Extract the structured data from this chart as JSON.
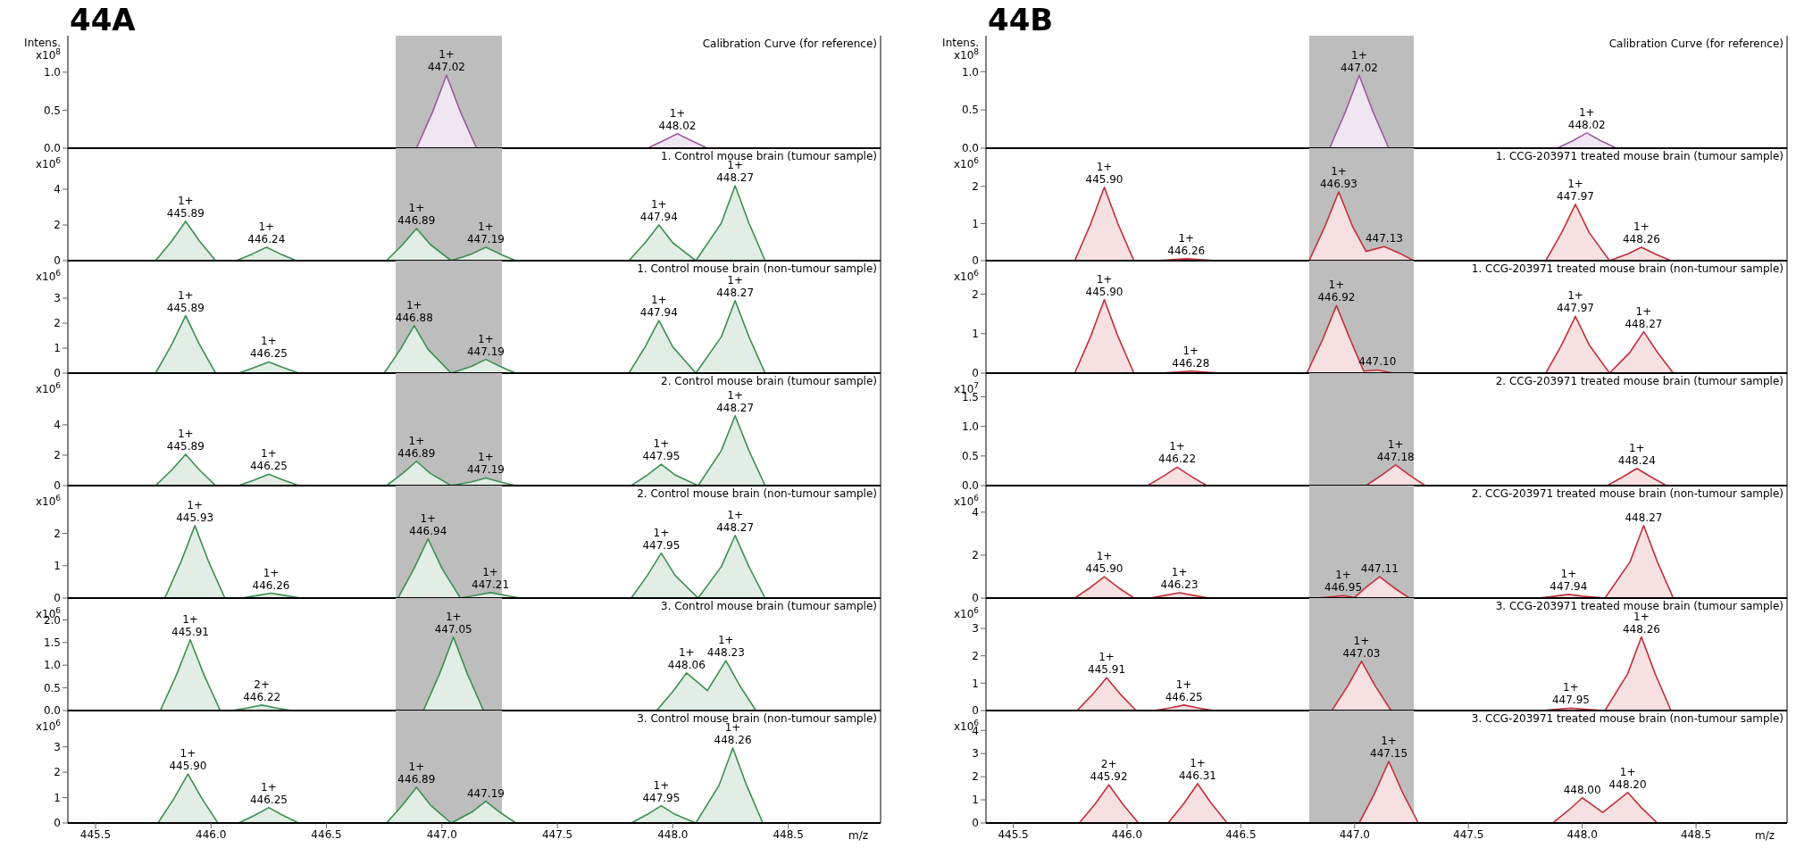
{
  "chart_data": [
    {
      "type": "area",
      "title": "Calibration Curve (for reference)",
      "ylabel": "Intens.\nx10$^{8}$",
      "annotations": [
        "44A",
        {
          "text": "1+\n447.02",
          "x": 447.02,
          "y": 0.96
        },
        {
          "text": "1+\n448.02",
          "x": 448.02,
          "y": 0.19
        }
      ],
      "xlim": [
        445.38,
        448.9
      ],
      "ylim": [
        0,
        1.48
      ],
      "yticks": [
        {
          "value": 0,
          "label": "0.0"
        },
        0.5,
        {
          "value": 1,
          "label": "1.0"
        }
      ],
      "tick_labels": "y",
      "bands": [
        {
          "axis": "x",
          "from": 446.8,
          "to": 447.26,
          "color": "#bdbdbd"
        }
      ],
      "series": [
        {
          "color": "#9c5aa0",
          "x": [
            446.89,
            446.96,
            447.02,
            447.08,
            447.15,
            447.89,
            447.96,
            448.02,
            448.08,
            448.15
          ],
          "values": [
            0,
            0.48,
            0.96,
            0.48,
            0,
            0,
            0.1,
            0.19,
            0.1,
            0
          ]
        }
      ]
    },
    {
      "type": "area",
      "title": "1. Control mouse brain (tumour sample)",
      "ylabel": "x10$^{6}$",
      "annotations": [
        {
          "text": "1+\n445.89",
          "x": 445.89,
          "y": 2.2
        },
        {
          "text": "1+\n446.24",
          "x": 446.24,
          "y": 0.75
        },
        {
          "text": "1+\n446.89",
          "x": 446.89,
          "y": 1.8
        },
        {
          "text": "1+\n447.19",
          "x": 447.19,
          "y": 0.75
        },
        {
          "text": "1+\n447.94",
          "x": 447.94,
          "y": 2.0
        },
        {
          "text": "1+\n448.27",
          "x": 448.27,
          "y": 4.2
        }
      ],
      "xlim": [
        445.38,
        448.9
      ],
      "ylim": [
        0,
        6.3
      ],
      "yticks": [
        0,
        2,
        4
      ],
      "tick_labels": "y",
      "bands": [
        {
          "axis": "x",
          "from": 446.8,
          "to": 447.26,
          "color": "#bdbdbd"
        }
      ],
      "series": [
        {
          "color": "#3c8f4f",
          "x": [
            445.76,
            445.83,
            445.89,
            445.95,
            446.02,
            446.11,
            446.18,
            446.24,
            446.3,
            446.37,
            446.76,
            446.83,
            446.89,
            446.95,
            447.04,
            447.13,
            447.19,
            447.25,
            447.32,
            447.81,
            447.88,
            447.94,
            448.0,
            448.1,
            448.21,
            448.27,
            448.33,
            448.4
          ],
          "values": [
            0,
            1.1,
            2.2,
            1.1,
            0,
            0,
            0.38,
            0.75,
            0.38,
            0,
            0,
            0.9,
            1.8,
            0.9,
            0,
            0.38,
            0.75,
            0.38,
            0,
            0,
            1,
            2,
            1,
            0,
            2.1,
            4.2,
            2.1,
            0
          ]
        }
      ]
    },
    {
      "type": "area",
      "title": "1. Control mouse brain (non-tumour sample)",
      "ylabel": "x10$^{6}$",
      "annotations": [
        {
          "text": "1+\n445.89",
          "x": 445.89,
          "y": 2.3
        },
        {
          "text": "1+\n446.25",
          "x": 446.25,
          "y": 0.45
        },
        {
          "text": "1+\n446.88",
          "x": 446.88,
          "y": 1.9
        },
        {
          "text": "1+\n447.19",
          "x": 447.19,
          "y": 0.55
        },
        {
          "text": "1+\n447.94",
          "x": 447.94,
          "y": 2.1
        },
        {
          "text": "1+\n448.27",
          "x": 448.27,
          "y": 2.9
        }
      ],
      "xlim": [
        445.38,
        448.9
      ],
      "ylim": [
        0,
        4.5
      ],
      "yticks": [
        0,
        1,
        2,
        3
      ],
      "tick_labels": "y",
      "bands": [
        {
          "axis": "x",
          "from": 446.8,
          "to": 447.26,
          "color": "#bdbdbd"
        }
      ],
      "series": [
        {
          "color": "#3c8f4f",
          "x": [
            445.76,
            445.83,
            445.89,
            445.95,
            446.02,
            446.12,
            446.19,
            446.25,
            446.31,
            446.38,
            446.75,
            446.82,
            446.88,
            446.94,
            447.04,
            447.13,
            447.19,
            447.25,
            447.32,
            447.81,
            447.88,
            447.94,
            448.0,
            448.1,
            448.21,
            448.27,
            448.33,
            448.4
          ],
          "values": [
            0,
            1.15,
            2.3,
            1.15,
            0,
            0,
            0.23,
            0.45,
            0.23,
            0,
            0,
            0.95,
            1.9,
            0.95,
            0,
            0.28,
            0.55,
            0.28,
            0,
            0,
            1.05,
            2.1,
            1.05,
            0,
            1.45,
            2.9,
            1.45,
            0
          ]
        }
      ]
    },
    {
      "type": "area",
      "title": "2. Control mouse brain (tumour sample)",
      "ylabel": "x10$^{6}$",
      "annotations": [
        {
          "text": "1+\n445.89",
          "x": 445.89,
          "y": 2.06
        },
        {
          "text": "1+\n446.25",
          "x": 446.25,
          "y": 0.75
        },
        {
          "text": "1+\n446.89",
          "x": 446.89,
          "y": 1.6
        },
        {
          "text": "1+\n447.19",
          "x": 447.19,
          "y": 0.5
        },
        {
          "text": "1+\n447.95",
          "x": 447.95,
          "y": 1.4
        },
        {
          "text": "1+\n448.27",
          "x": 448.27,
          "y": 4.6
        }
      ],
      "xlim": [
        445.38,
        448.9
      ],
      "ylim": [
        0,
        7.4
      ],
      "yticks": [
        0,
        2,
        4
      ],
      "tick_labels": "y",
      "bands": [
        {
          "axis": "x",
          "from": 446.8,
          "to": 447.26,
          "color": "#bdbdbd"
        }
      ],
      "series": [
        {
          "color": "#3c8f4f",
          "x": [
            445.76,
            445.83,
            445.89,
            445.95,
            446.02,
            446.12,
            446.19,
            446.25,
            446.31,
            446.38,
            446.76,
            446.83,
            446.89,
            446.95,
            447.04,
            447.13,
            447.19,
            447.25,
            447.32,
            447.82,
            447.89,
            447.95,
            448.01,
            448.11,
            448.21,
            448.27,
            448.33,
            448.4
          ],
          "values": [
            0,
            1.03,
            2.06,
            1.03,
            0,
            0,
            0.38,
            0.75,
            0.38,
            0,
            0,
            0.8,
            1.6,
            0.8,
            0,
            0.25,
            0.5,
            0.25,
            0,
            0,
            0.7,
            1.4,
            0.7,
            0,
            2.3,
            4.6,
            2.3,
            0
          ]
        }
      ]
    },
    {
      "type": "area",
      "title": "2. Control mouse brain (non-tumour sample)",
      "ylabel": "x10$^{6}$",
      "annotations": [
        {
          "text": "1+\n445.93",
          "x": 445.93,
          "y": 2.24
        },
        {
          "text": "1+\n446.26",
          "x": 446.26,
          "y": 0.15
        },
        {
          "text": "1+\n446.94",
          "x": 446.94,
          "y": 1.83
        },
        {
          "text": "1+\n447.21",
          "x": 447.21,
          "y": 0.17
        },
        {
          "text": "1+\n447.95",
          "x": 447.95,
          "y": 1.39
        },
        {
          "text": "1+\n448.27",
          "x": 448.27,
          "y": 1.94
        }
      ],
      "xlim": [
        445.38,
        448.9
      ],
      "ylim": [
        0,
        3.48
      ],
      "yticks": [
        0,
        1,
        2
      ],
      "tick_labels": "y",
      "bands": [
        {
          "axis": "x",
          "from": 446.8,
          "to": 447.26,
          "color": "#bdbdbd"
        }
      ],
      "series": [
        {
          "color": "#3c8f4f",
          "x": [
            445.8,
            445.87,
            445.93,
            445.99,
            446.06,
            446.13,
            446.2,
            446.26,
            446.32,
            446.39,
            446.81,
            446.88,
            446.94,
            447.0,
            447.08,
            447.15,
            447.21,
            447.27,
            447.34,
            447.82,
            447.89,
            447.95,
            448.01,
            448.11,
            448.21,
            448.27,
            448.33,
            448.4
          ],
          "values": [
            0,
            1.12,
            2.24,
            1.12,
            0,
            0,
            0.08,
            0.15,
            0.08,
            0,
            0,
            0.92,
            1.83,
            0.92,
            0,
            0.09,
            0.17,
            0.09,
            0,
            0,
            0.7,
            1.39,
            0.7,
            0,
            0.97,
            1.94,
            0.97,
            0
          ]
        }
      ]
    },
    {
      "type": "area",
      "title": "3. Control mouse brain (tumour sample)",
      "ylabel": "x10$^{6}$",
      "annotations": [
        {
          "text": "1+\n445.91",
          "x": 445.91,
          "y": 1.56
        },
        {
          "text": "2+\n446.22",
          "x": 446.22,
          "y": 0.12
        },
        {
          "text": "1+\n447.05",
          "x": 447.05,
          "y": 1.62
        },
        {
          "text": "1+\n448.06",
          "x": 448.06,
          "y": 0.83
        },
        {
          "text": "1+\n448.23",
          "x": 448.23,
          "y": 1.1
        }
      ],
      "xlim": [
        445.38,
        448.9
      ],
      "ylim": [
        0,
        2.48
      ],
      "yticks": [
        {
          "value": 0,
          "label": "0.0"
        },
        0.5,
        {
          "value": 1,
          "label": "1.0"
        },
        1.5,
        {
          "value": 2,
          "label": "2.0"
        }
      ],
      "tick_labels": "y",
      "bands": [
        {
          "axis": "x",
          "from": 446.8,
          "to": 447.26,
          "color": "#bdbdbd"
        }
      ],
      "series": [
        {
          "color": "#3c8f4f",
          "x": [
            445.78,
            445.85,
            445.91,
            445.97,
            446.04,
            446.09,
            446.16,
            446.22,
            446.28,
            446.35,
            446.92,
            446.99,
            447.05,
            447.11,
            447.18,
            447.93,
            448.0,
            448.06,
            448.15,
            448.23,
            448.29,
            448.36
          ],
          "values": [
            0,
            0.78,
            1.56,
            0.78,
            0,
            0,
            0.06,
            0.12,
            0.06,
            0,
            0,
            0.81,
            1.62,
            0.81,
            0,
            0,
            0.42,
            0.83,
            0.44,
            1.1,
            0.55,
            0
          ]
        }
      ]
    },
    {
      "type": "area",
      "title": "3. Control mouse brain (non-tumour sample)",
      "ylabel": "x10$^{6}$",
      "xlabel": "m/z",
      "annotations": [
        {
          "text": "1+\n445.90",
          "x": 445.9,
          "y": 1.93
        },
        {
          "text": "1+\n446.25",
          "x": 446.25,
          "y": 0.61
        },
        {
          "text": "1+\n446.89",
          "x": 446.89,
          "y": 1.41
        },
        {
          "text": "447.19",
          "x": 447.19,
          "y": 0.86
        },
        {
          "text": "1+\n447.95",
          "x": 447.95,
          "y": 0.68
        },
        {
          "text": "1+\n448.26",
          "x": 448.26,
          "y": 2.95
        }
      ],
      "xlim": [
        445.38,
        448.9
      ],
      "xticks": [
        445.5,
        {
          "value": 446,
          "label": "446.0"
        },
        446.5,
        {
          "value": 447,
          "label": "447.0"
        },
        447.5,
        {
          "value": 448,
          "label": "448.0"
        },
        448.5
      ],
      "ylim": [
        0,
        4.43
      ],
      "yticks": [
        0,
        1,
        2,
        3
      ],
      "bands": [
        {
          "axis": "x",
          "from": 446.8,
          "to": 447.26,
          "color": "#bdbdbd"
        }
      ],
      "series": [
        {
          "color": "#3c8f4f",
          "x": [
            445.77,
            445.84,
            445.9,
            445.96,
            446.03,
            446.12,
            446.19,
            446.25,
            446.31,
            446.38,
            446.76,
            446.83,
            446.89,
            446.95,
            447.04,
            447.13,
            447.19,
            447.25,
            447.32,
            447.82,
            447.89,
            447.95,
            448.01,
            448.1,
            448.2,
            448.26,
            448.32,
            448.39
          ],
          "values": [
            0,
            0.97,
            1.93,
            0.97,
            0,
            0,
            0.31,
            0.61,
            0.31,
            0,
            0,
            0.71,
            1.41,
            0.71,
            0,
            0.43,
            0.86,
            0.43,
            0,
            0,
            0.34,
            0.68,
            0.34,
            0,
            1.48,
            2.95,
            1.48,
            0
          ]
        }
      ]
    },
    {
      "type": "area",
      "title": "Calibration Curve (for reference)",
      "ylabel": "Intens.\nx10$^{8}$",
      "annotations": [
        "44B",
        {
          "text": "1+\n447.02",
          "x": 447.02,
          "y": 0.95
        },
        {
          "text": "1+\n448.02",
          "x": 448.02,
          "y": 0.2
        }
      ],
      "xlim": [
        445.38,
        448.9
      ],
      "ylim": [
        0,
        1.47
      ],
      "yticks": [
        {
          "value": 0,
          "label": "0.0"
        },
        0.5,
        {
          "value": 1,
          "label": "1.0"
        }
      ],
      "tick_labels": "y",
      "bands": [
        {
          "axis": "x",
          "from": 446.8,
          "to": 447.26,
          "color": "#bdbdbd"
        }
      ],
      "series": [
        {
          "color": "#9c5aa0",
          "x": [
            446.89,
            446.96,
            447.02,
            447.08,
            447.15,
            447.89,
            447.96,
            448.02,
            448.08,
            448.15
          ],
          "values": [
            0,
            0.48,
            0.95,
            0.48,
            0,
            0,
            0.1,
            0.2,
            0.1,
            0
          ]
        }
      ]
    },
    {
      "type": "area",
      "title": "1. CCG-203971 treated mouse brain (tumour sample)",
      "ylabel": "x10$^{6}$",
      "annotations": [
        {
          "text": "1+\n445.90",
          "x": 445.9,
          "y": 1.98
        },
        {
          "text": "1+\n446.26",
          "x": 446.26,
          "y": 0.05
        },
        {
          "text": "1+\n446.93",
          "x": 446.93,
          "y": 1.85
        },
        {
          "text": "447.13",
          "x": 447.13,
          "y": 0.38
        },
        {
          "text": "1+\n447.97",
          "x": 447.97,
          "y": 1.52
        },
        {
          "text": "1+\n448.26",
          "x": 448.26,
          "y": 0.36
        }
      ],
      "xlim": [
        445.38,
        448.9
      ],
      "ylim": [
        0,
        3.03
      ],
      "yticks": [
        0,
        1,
        2
      ],
      "tick_labels": "y",
      "bands": [
        {
          "axis": "x",
          "from": 446.8,
          "to": 447.26,
          "color": "#bdbdbd"
        }
      ],
      "series": [
        {
          "color": "#c0303a",
          "x": [
            445.77,
            445.84,
            445.9,
            445.96,
            446.03,
            446.13,
            446.2,
            446.26,
            446.32,
            446.39,
            446.8,
            446.87,
            446.93,
            446.99,
            447.05,
            447.13,
            447.2,
            447.26,
            447.84,
            447.91,
            447.97,
            448.03,
            448.12,
            448.2,
            448.26,
            448.32,
            448.39
          ],
          "values": [
            0,
            0.99,
            1.98,
            0.99,
            0,
            0,
            0.03,
            0.05,
            0.03,
            0,
            0,
            0.93,
            1.85,
            0.93,
            0.25,
            0.38,
            0.19,
            0,
            0,
            0.76,
            1.52,
            0.76,
            0,
            0.18,
            0.36,
            0.18,
            0
          ]
        }
      ]
    },
    {
      "type": "area",
      "title": "1. CCG-203971 treated mouse brain (non-tumour sample)",
      "ylabel": "x10$^{6}$",
      "annotations": [
        {
          "text": "1+\n445.90",
          "x": 445.9,
          "y": 1.86
        },
        {
          "text": "1+\n446.28",
          "x": 446.28,
          "y": 0.05
        },
        {
          "text": "1+\n446.92",
          "x": 446.92,
          "y": 1.71
        },
        {
          "text": "447.10",
          "x": 447.1,
          "y": 0.08
        },
        {
          "text": "1+\n447.97",
          "x": 447.97,
          "y": 1.44
        },
        {
          "text": "1+\n448.27",
          "x": 448.27,
          "y": 1.05
        }
      ],
      "xlim": [
        445.38,
        448.9
      ],
      "ylim": [
        0,
        2.85
      ],
      "yticks": [
        0,
        1,
        2
      ],
      "tick_labels": "y",
      "bands": [
        {
          "axis": "x",
          "from": 446.8,
          "to": 447.26,
          "color": "#bdbdbd"
        }
      ],
      "series": [
        {
          "color": "#c0303a",
          "x": [
            445.77,
            445.84,
            445.9,
            445.96,
            446.03,
            446.15,
            446.22,
            446.28,
            446.34,
            446.41,
            446.79,
            446.86,
            446.92,
            446.98,
            447.04,
            447.1,
            447.17,
            447.84,
            447.91,
            447.97,
            448.03,
            448.12,
            448.21,
            448.27,
            448.33,
            448.4
          ],
          "values": [
            0,
            0.93,
            1.86,
            0.93,
            0,
            0,
            0.03,
            0.05,
            0.03,
            0,
            0,
            0.86,
            1.71,
            0.86,
            0.05,
            0.08,
            0,
            0,
            0.72,
            1.44,
            0.72,
            0,
            0.53,
            1.05,
            0.53,
            0
          ]
        }
      ]
    },
    {
      "type": "area",
      "title": "2. CCG-203971 treated mouse brain (tumour sample)",
      "ylabel": "x10$^{7}$",
      "annotations": [
        {
          "text": "1+\n446.22",
          "x": 446.22,
          "y": 0.31
        },
        {
          "text": "1+\n447.18",
          "x": 447.18,
          "y": 0.35
        },
        {
          "text": "1+\n448.24",
          "x": 448.24,
          "y": 0.29
        }
      ],
      "xlim": [
        445.38,
        448.9
      ],
      "ylim": [
        0,
        1.9
      ],
      "yticks": [
        {
          "value": 0,
          "label": "0.0"
        },
        0.5,
        {
          "value": 1,
          "label": "1.0"
        },
        1.5
      ],
      "tick_labels": "y",
      "bands": [
        {
          "axis": "x",
          "from": 446.8,
          "to": 447.26,
          "color": "#bdbdbd"
        }
      ],
      "series": [
        {
          "color": "#c0303a",
          "x": [
            446.09,
            446.16,
            446.22,
            446.28,
            446.35,
            447.05,
            447.12,
            447.18,
            447.24,
            447.31,
            448.11,
            448.18,
            448.24,
            448.3,
            448.37
          ],
          "values": [
            0,
            0.16,
            0.31,
            0.16,
            0,
            0,
            0.18,
            0.35,
            0.18,
            0,
            0,
            0.15,
            0.29,
            0.15,
            0
          ]
        }
      ]
    },
    {
      "type": "area",
      "title": "2. CCG-203971 treated mouse brain (non-tumour sample)",
      "ylabel": "x10$^{6}$",
      "annotations": [
        {
          "text": "1+\n445.90",
          "x": 445.9,
          "y": 0.99
        },
        {
          "text": "1+\n446.23",
          "x": 446.23,
          "y": 0.25
        },
        {
          "text": "1+\n446.95",
          "x": 446.95,
          "y": 0.11
        },
        {
          "text": "447.11",
          "x": 447.11,
          "y": 0.99
        },
        {
          "text": "1+\n447.94",
          "x": 447.94,
          "y": 0.17
        },
        {
          "text": "448.27",
          "x": 448.27,
          "y": 3.38
        }
      ],
      "xlim": [
        445.38,
        448.9
      ],
      "ylim": [
        0,
        5.24
      ],
      "yticks": [
        0,
        2,
        4
      ],
      "tick_labels": "y",
      "bands": [
        {
          "axis": "x",
          "from": 446.8,
          "to": 447.26,
          "color": "#bdbdbd"
        }
      ],
      "series": [
        {
          "color": "#c0303a",
          "x": [
            445.77,
            445.84,
            445.9,
            445.96,
            446.03,
            446.1,
            446.17,
            446.23,
            446.29,
            446.36,
            446.84,
            446.9,
            446.95,
            447.0,
            447.05,
            447.11,
            447.17,
            447.24,
            447.81,
            447.88,
            447.94,
            448.0,
            448.1,
            448.21,
            448.27,
            448.33,
            448.4
          ],
          "values": [
            0,
            0.5,
            0.99,
            0.5,
            0,
            0,
            0.13,
            0.25,
            0.13,
            0,
            0,
            0.06,
            0.11,
            0.03,
            0.5,
            0.99,
            0.5,
            0,
            0,
            0.09,
            0.17,
            0.09,
            0,
            1.69,
            3.38,
            1.69,
            0
          ]
        }
      ]
    },
    {
      "type": "area",
      "title": "3. CCG-203971 treated mouse brain (tumour sample)",
      "ylabel": "x10$^{6}$",
      "annotations": [
        {
          "text": "1+\n445.91",
          "x": 445.91,
          "y": 1.2
        },
        {
          "text": "1+\n446.25",
          "x": 446.25,
          "y": 0.2
        },
        {
          "text": "1+\n447.03",
          "x": 447.03,
          "y": 1.8
        },
        {
          "text": "1+\n447.95",
          "x": 447.95,
          "y": 0.09
        },
        {
          "text": "1+\n448.26",
          "x": 448.26,
          "y": 2.69
        }
      ],
      "xlim": [
        445.38,
        448.9
      ],
      "ylim": [
        0,
        4.11
      ],
      "yticks": [
        0,
        1,
        2,
        3
      ],
      "tick_labels": "y",
      "bands": [
        {
          "axis": "x",
          "from": 446.8,
          "to": 447.26,
          "color": "#bdbdbd"
        }
      ],
      "series": [
        {
          "color": "#c0303a",
          "x": [
            445.78,
            445.85,
            445.91,
            445.97,
            446.04,
            446.12,
            446.19,
            446.25,
            446.31,
            446.38,
            446.9,
            446.97,
            447.03,
            447.09,
            447.16,
            447.82,
            447.89,
            447.95,
            448.01,
            448.1,
            448.2,
            448.26,
            448.32,
            448.39
          ],
          "values": [
            0,
            0.6,
            1.2,
            0.6,
            0,
            0,
            0.1,
            0.2,
            0.1,
            0,
            0,
            0.9,
            1.8,
            0.9,
            0,
            0,
            0.05,
            0.09,
            0.05,
            0,
            1.35,
            2.69,
            1.35,
            0
          ]
        }
      ]
    },
    {
      "type": "area",
      "title": "3. CCG-203971 treated mouse brain (non-tumour sample)",
      "ylabel": "x10$^{6}$",
      "xlabel": "m/z",
      "annotations": [
        {
          "text": "2+\n445.92",
          "x": 445.92,
          "y": 1.65
        },
        {
          "text": "1+\n446.31",
          "x": 446.31,
          "y": 1.7
        },
        {
          "text": "1+\n447.15",
          "x": 447.15,
          "y": 2.66
        },
        {
          "text": "448.00",
          "x": 448.0,
          "y": 1.09
        },
        {
          "text": "1+\n448.20",
          "x": 448.2,
          "y": 1.32
        }
      ],
      "xlim": [
        445.38,
        448.9
      ],
      "xticks": [
        445.5,
        {
          "value": 446,
          "label": "446.0"
        },
        446.5,
        {
          "value": 447,
          "label": "447.0"
        },
        447.5,
        {
          "value": 448,
          "label": "448.0"
        },
        448.5
      ],
      "ylim": [
        0,
        4.86
      ],
      "yticks": [
        0,
        1,
        2,
        3,
        4
      ],
      "bands": [
        {
          "axis": "x",
          "from": 446.8,
          "to": 447.26,
          "color": "#bdbdbd"
        }
      ],
      "series": [
        {
          "color": "#c0303a",
          "x": [
            445.79,
            445.86,
            445.92,
            445.98,
            446.05,
            446.18,
            446.25,
            446.31,
            446.37,
            446.44,
            447.02,
            447.09,
            447.15,
            447.21,
            447.28,
            447.87,
            447.94,
            448.0,
            448.09,
            448.2,
            448.26,
            448.33
          ],
          "values": [
            0,
            0.83,
            1.65,
            0.83,
            0,
            0,
            0.85,
            1.7,
            0.85,
            0,
            0,
            1.33,
            2.66,
            1.33,
            0,
            0,
            0.55,
            1.09,
            0.46,
            1.32,
            0.66,
            0
          ]
        }
      ]
    }
  ]
}
